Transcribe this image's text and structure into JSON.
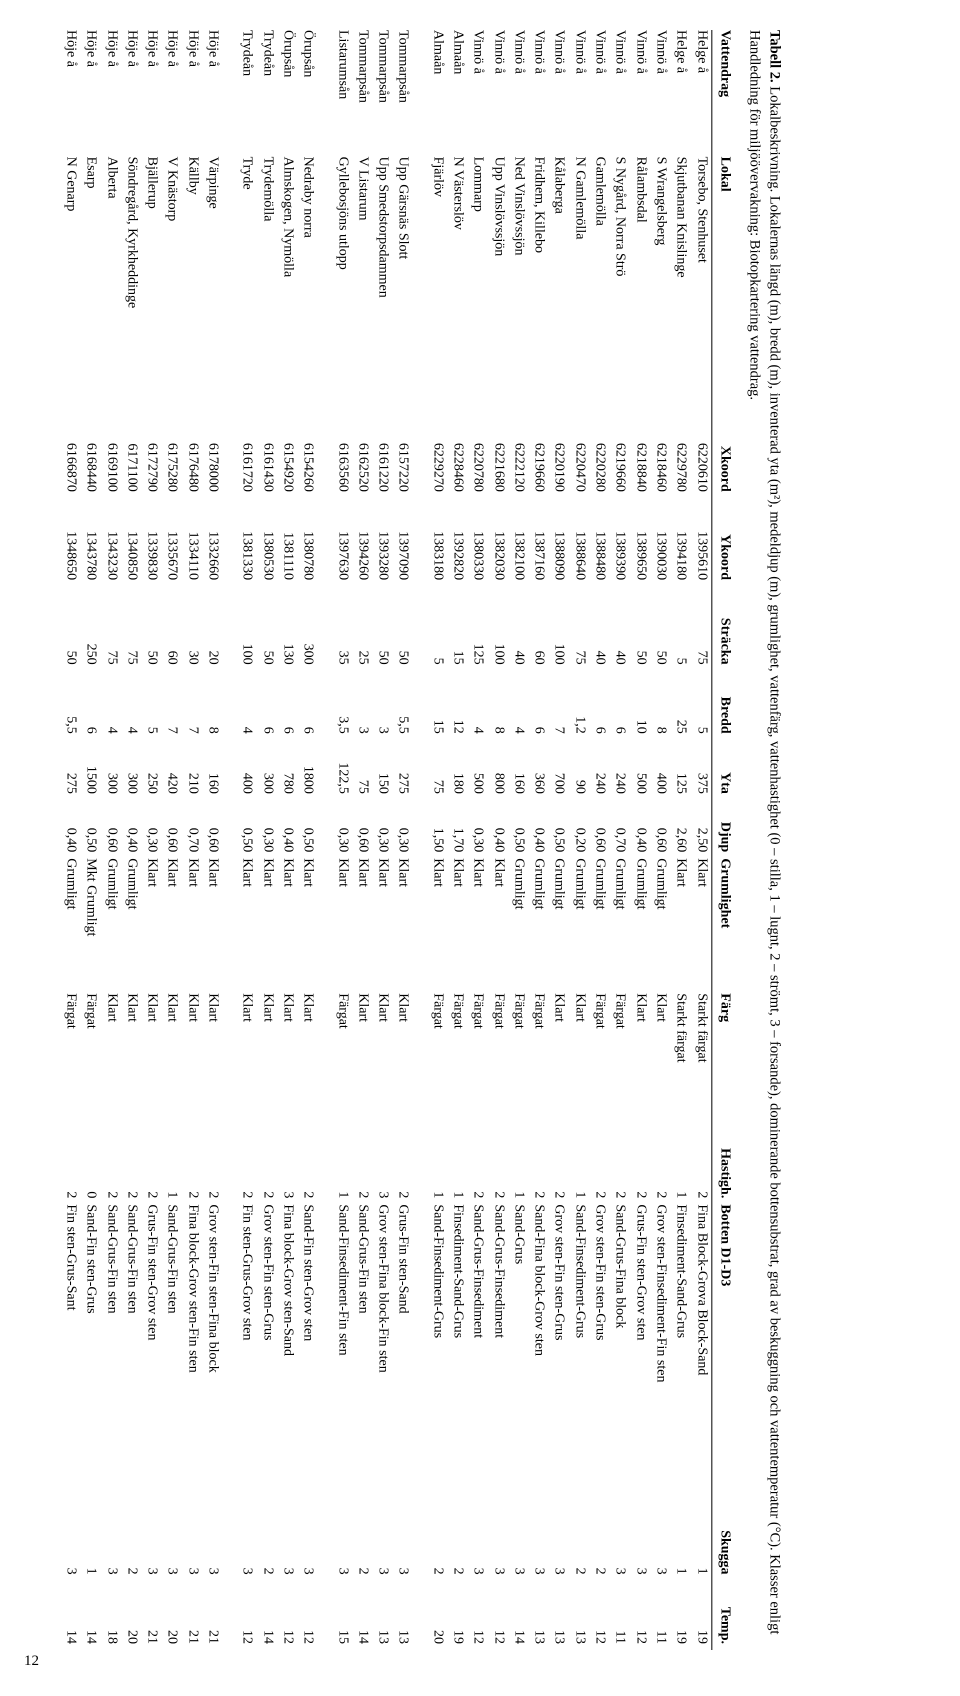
{
  "caption": {
    "label": "Tabell 2.",
    "text": "Lokalbeskrivning. Lokalernas längd (m), bredd (m), inventerad yta (m²), medeldjup (m), grumlighet, vattenfärg, vattenhastighet (0 – stilla, 1 – lugnt, 2 – strömt, 3 – forsande), dominerande bottensubstrat, grad av beskuggning och vattentemperatur (°C). Klasser enligt Handledning för miljöövervakning: Biotopkartering vattendrag."
  },
  "columns": [
    "Vattendrag",
    "Lokal",
    "Xkoord",
    "Ykoord",
    "Sträcka",
    "Bredd",
    "Yta",
    "Djup",
    "Grumlighet",
    "Färg",
    "Hastigh.",
    "Botten D1-D3",
    "Skugga",
    "Temp."
  ],
  "colStyle": {
    "numCols": [
      2,
      3,
      4,
      5,
      6,
      7,
      10,
      12,
      13
    ]
  },
  "groups": [
    {
      "rows": [
        [
          "Helge å",
          "Torsebo, Stenhuset",
          "6220610",
          "1395610",
          "75",
          "5",
          "375",
          "2,50",
          "Klart",
          "Starkt färgat",
          "2",
          "Fina Block-Grova Block-Sand",
          "1",
          "19"
        ],
        [
          "Helge å",
          "Skjutbanan Knislinge",
          "6229780",
          "1394180",
          "5",
          "25",
          "125",
          "2,60",
          "Klart",
          "Starkt färgat",
          "1",
          "Finsediment-Sand-Grus",
          "1",
          "19"
        ],
        [
          "Vinnö å",
          "S Wrangelsberg",
          "6218460",
          "1390030",
          "50",
          "8",
          "400",
          "0,60",
          "Grumligt",
          "Klart",
          "2",
          "Grov sten-Finsediment-Fin sten",
          "3",
          "11"
        ],
        [
          "Vinnö å",
          "Rålambsdal",
          "6218840",
          "1389650",
          "50",
          "10",
          "500",
          "0,40",
          "Grumligt",
          "Klart",
          "2",
          "Grus-Fin sten-Grov sten",
          "3",
          "12"
        ],
        [
          "Vinnö å",
          "S Nygård, Norra Strö",
          "6219660",
          "1389390",
          "40",
          "6",
          "240",
          "0,70",
          "Grumligt",
          "Färgat",
          "2",
          "Sand-Grus-Fina block",
          "3",
          "11"
        ],
        [
          "Vinnö å",
          "Gamlemölla",
          "6220280",
          "1388480",
          "40",
          "6",
          "240",
          "0,60",
          "Grumligt",
          "Färgat",
          "2",
          "Grov sten-Fin sten-Grus",
          "2",
          "12"
        ],
        [
          "Vinnö å",
          "N Gamlemölla",
          "6220470",
          "1388640",
          "75",
          "1,2",
          "90",
          "0,20",
          "Grumligt",
          "Klart",
          "1",
          "Sand-Finsediment-Grus",
          "2",
          "13"
        ],
        [
          "Vinnö å",
          "Kålaberga",
          "6220190",
          "1388090",
          "100",
          "7",
          "700",
          "0,50",
          "Grumligt",
          "Klart",
          "2",
          "Grov sten-Fin sten-Grus",
          "3",
          "13"
        ],
        [
          "Vinnö å",
          "Fridhem, Killebo",
          "6219660",
          "1387160",
          "60",
          "6",
          "360",
          "0,40",
          "Grumligt",
          "Färgat",
          "2",
          "Sand-Fina block-Grov sten",
          "3",
          "13"
        ],
        [
          "Vinnö å",
          "Ned Vinslövssjön",
          "6222120",
          "1382100",
          "40",
          "4",
          "160",
          "0,50",
          "Grumligt",
          "Färgat",
          "1",
          "Sand-Grus",
          "3",
          "14"
        ],
        [
          "Vinnö å",
          "Upp Vinslövssjön",
          "6221680",
          "1382030",
          "100",
          "8",
          "800",
          "0,40",
          "Klart",
          "Färgat",
          "2",
          "Sand-Grus-Finsediment",
          "3",
          "12"
        ],
        [
          "Vinnö å",
          "Lommarp",
          "6220780",
          "1380330",
          "125",
          "4",
          "500",
          "0,30",
          "Klart",
          "Färgat",
          "2",
          "Sand-Grus-Finsediment",
          "3",
          "12"
        ],
        [
          "Almaån",
          "N Västerslöv",
          "6228460",
          "1392820",
          "15",
          "12",
          "180",
          "1,70",
          "Klart",
          "Färgat",
          "1",
          "Finsediment-Sand-Grus",
          "2",
          "19"
        ],
        [
          "Almaån",
          "Fjärlöv",
          "6229270",
          "1383180",
          "5",
          "15",
          "75",
          "1,50",
          "Klart",
          "Färgat",
          "1",
          "Sand-Finsediment-Grus",
          "2",
          "20"
        ]
      ]
    },
    {
      "rows": [
        [
          "Tommarpsån",
          "Upp Gärsnäs Slott",
          "6157220",
          "1397090",
          "50",
          "5,5",
          "275",
          "0,30",
          "Klart",
          "Klart",
          "2",
          "Grus-Fin sten-Sand",
          "3",
          "13"
        ],
        [
          "Tommarpsån",
          "Upp Smedstorpsdammen",
          "6161220",
          "1393280",
          "50",
          "3",
          "150",
          "0,30",
          "Klart",
          "Klart",
          "3",
          "Grov sten-Fina block-Fin sten",
          "3",
          "13"
        ],
        [
          "Tommarpsån",
          "V Listarum",
          "6162520",
          "1394260",
          "25",
          "3",
          "75",
          "0,60",
          "Klart",
          "Klart",
          "2",
          "Sand-Grus-Fin sten",
          "2",
          "14"
        ],
        [
          "Listarumsån",
          "Gyllebosjöns utlopp",
          "6163560",
          "1397630",
          "35",
          "3,5",
          "122,5",
          "0,30",
          "Klart",
          "Färgat",
          "1",
          "Sand-Finsediment-Fin sten",
          "3",
          "15"
        ]
      ]
    },
    {
      "rows": [
        [
          "Örupsån",
          "Nedraby norra",
          "6154260",
          "1380780",
          "300",
          "6",
          "1800",
          "0,50",
          "Klart",
          "Klart",
          "2",
          "Sand-Fin sten-Grov sten",
          "3",
          "12"
        ],
        [
          "Örupsån",
          "Almskogen, Nymölla",
          "6154920",
          "1381110",
          "130",
          "6",
          "780",
          "0,40",
          "Klart",
          "Klart",
          "3",
          "Fina block-Grov sten-Sand",
          "3",
          "12"
        ],
        [
          "Trydeån",
          "Trydemölla",
          "6161430",
          "1380530",
          "50",
          "6",
          "300",
          "0,30",
          "Klart",
          "Klart",
          "2",
          "Grov sten-Fin sten-Grus",
          "2",
          "14"
        ],
        [
          "Trydeån",
          "Tryde",
          "6161720",
          "1381330",
          "100",
          "4",
          "400",
          "0,50",
          "Klart",
          "Klart",
          "2",
          "Fin sten-Grus-Grov sten",
          "3",
          "12"
        ]
      ]
    },
    {
      "rows": [
        [
          "Höje å",
          "Värpinge",
          "6178000",
          "1332660",
          "20",
          "8",
          "160",
          "0,60",
          "Klart",
          "Klart",
          "2",
          "Grov sten-Fin sten-Fina block",
          "3",
          "21"
        ],
        [
          "Höje å",
          "Källby",
          "6176480",
          "1334110",
          "30",
          "7",
          "210",
          "0,70",
          "Klart",
          "Klart",
          "2",
          "Fina block-Grov sten-Fin sten",
          "3",
          "21"
        ],
        [
          "Höje å",
          "V Knästorp",
          "6175280",
          "1335670",
          "60",
          "7",
          "420",
          "0,60",
          "Klart",
          "Klart",
          "1",
          "Sand-Grus-Fin sten",
          "3",
          "20"
        ],
        [
          "Höje å",
          "Bjällerup",
          "6172790",
          "1339830",
          "50",
          "5",
          "250",
          "0,30",
          "Klart",
          "Klart",
          "2",
          "Grus-Fin sten-Grov sten",
          "3",
          "21"
        ],
        [
          "Höje å",
          "Söndregård, Kyrkheddinge",
          "6171100",
          "1340850",
          "75",
          "4",
          "300",
          "0,40",
          "Grumligt",
          "Klart",
          "2",
          "Sand-Grus-Fin sten",
          "2",
          "20"
        ],
        [
          "Höje å",
          "Alberta",
          "6169100",
          "1343230",
          "75",
          "4",
          "300",
          "0,60",
          "Grumligt",
          "Klart",
          "2",
          "Sand-Grus-Fin sten",
          "3",
          "18"
        ],
        [
          "Höje å",
          "Esarp",
          "6168440",
          "1343780",
          "250",
          "6",
          "1500",
          "0,50",
          "Mkt Grumligt",
          "Färgat",
          "0",
          "Sand-Fin sten-Grus",
          "1",
          "14"
        ],
        [
          "Höje å",
          "N Genarp",
          "6166870",
          "1348650",
          "50",
          "5,5",
          "275",
          "0,40",
          "Grumligt",
          "Färgat",
          "2",
          "Fin sten-Grus-Sant",
          "3",
          "14"
        ]
      ]
    }
  ],
  "pageNumber": "12",
  "style": {
    "fontFamily": "Georgia, 'Times New Roman', serif",
    "fontSize": 14,
    "captionFontSize": 14.5,
    "background": "#ffffff",
    "text": "#000000",
    "borderColor": "#000000"
  }
}
